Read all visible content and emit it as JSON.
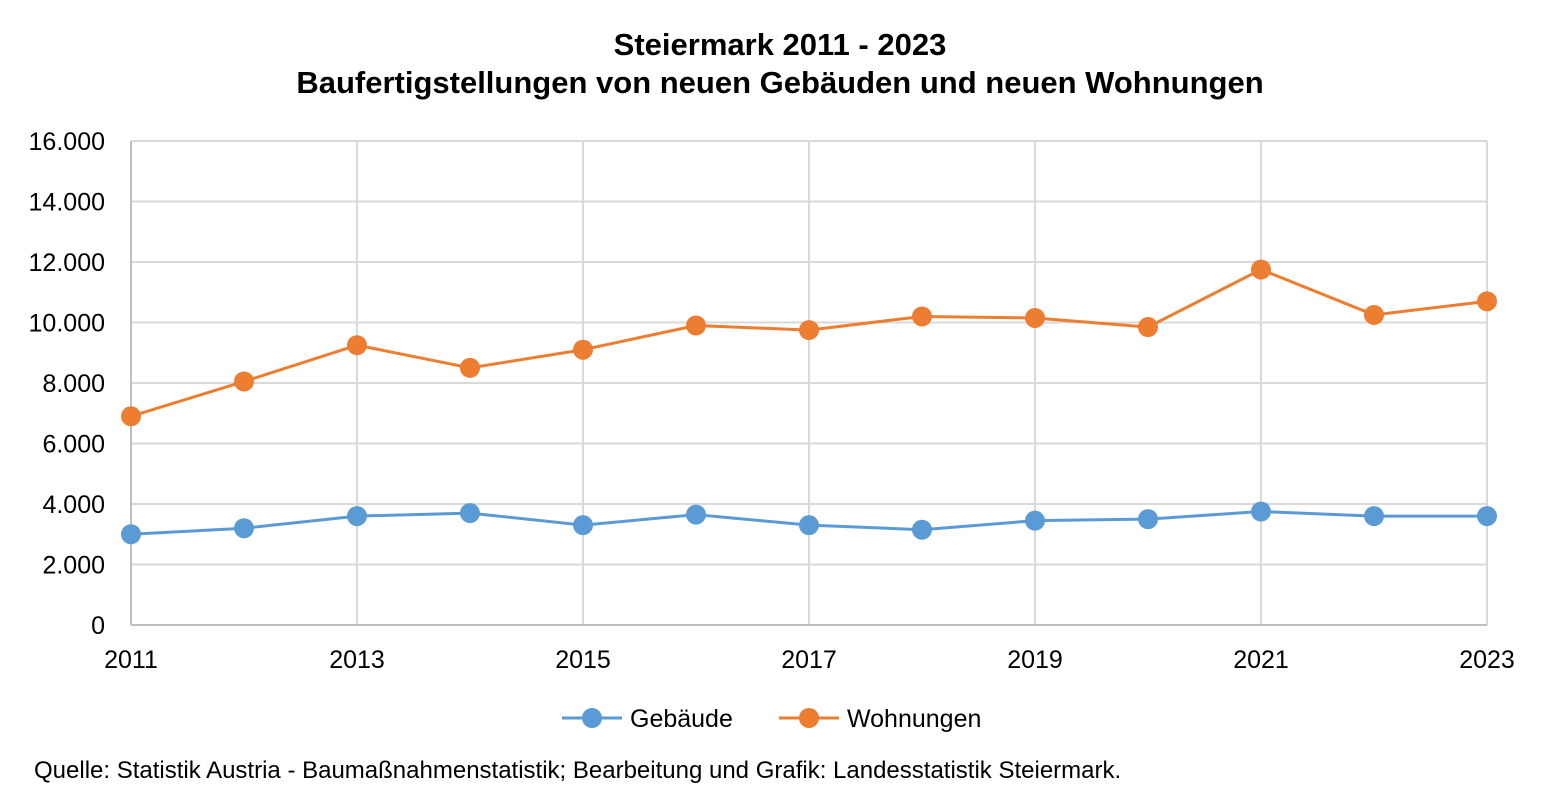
{
  "title": "Steiermark 2011 - 2023",
  "subtitle": "Baufertigstellungen von neuen Gebäuden und neuen Wohnungen",
  "source": "Quelle: Statistik Austria - Baumaßnahmenstatistik; Bearbeitung und Grafik: Landesstatistik Steiermark.",
  "chart_data": {
    "type": "line",
    "x": [
      2011,
      2012,
      2013,
      2014,
      2015,
      2016,
      2017,
      2018,
      2019,
      2020,
      2021,
      2022,
      2023
    ],
    "xticks": [
      "2011",
      "2013",
      "2015",
      "2017",
      "2019",
      "2021",
      "2023"
    ],
    "yticks": [
      "0",
      "2.000",
      "4.000",
      "6.000",
      "8.000",
      "10.000",
      "12.000",
      "14.000",
      "16.000"
    ],
    "ylim": [
      0,
      16000
    ],
    "xlim": [
      2011,
      2023
    ],
    "grid": true,
    "legend_position": "bottom",
    "series": [
      {
        "name": "Gebäude",
        "color": "#5B9BD5",
        "values": [
          3000,
          3200,
          3600,
          3700,
          3300,
          3650,
          3300,
          3150,
          3450,
          3500,
          3750,
          3600,
          3600
        ]
      },
      {
        "name": "Wohnungen",
        "color": "#ED7D31",
        "values": [
          6900,
          8050,
          9250,
          8500,
          9100,
          9900,
          9750,
          10200,
          10150,
          9850,
          11750,
          10250,
          10700
        ]
      }
    ]
  }
}
